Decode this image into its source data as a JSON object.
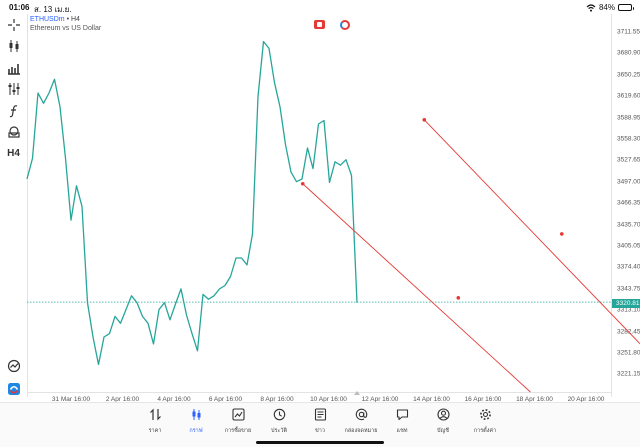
{
  "status_bar": {
    "time": "01:06",
    "date": "ส. 13 เม.ย.",
    "battery": "84%",
    "battery_level": 0.84
  },
  "chart_header": {
    "symbol": "ETHUSDm",
    "separator": "•",
    "timeframe": "H4",
    "description": "Ethereum vs US Dollar"
  },
  "left_toolbar": {
    "timeframe_button": "H4"
  },
  "price_axis": [
    "3711.55",
    "3680.90",
    "3650.25",
    "3619.60",
    "3588.95",
    "3558.30",
    "3527.65",
    "3497.00",
    "3466.35",
    "3435.70",
    "3405.05",
    "3374.40",
    "3343.75",
    "3313.10",
    "3282.45",
    "3251.80",
    "3221.15"
  ],
  "current_price": "3320.81",
  "time_axis": [
    "31 Mar 16:00",
    "2 Apr 16:00",
    "4 Apr 16:00",
    "6 Apr 16:00",
    "8 Apr 16:00",
    "10 Apr 16:00",
    "12 Apr 16:00",
    "14 Apr 16:00",
    "16 Apr 16:00",
    "18 Apr 16:00",
    "20 Apr 16:00"
  ],
  "colors": {
    "price_line": "#26a69a",
    "trend_lines": "#e53935",
    "accent": "#2962ff"
  },
  "tabs": [
    {
      "label": "ราคา",
      "icon": "quotes-icon"
    },
    {
      "label": "กราฟ",
      "icon": "candles-icon",
      "active": true
    },
    {
      "label": "การซื้อขาย",
      "icon": "trade-chart-icon"
    },
    {
      "label": "ประวัติ",
      "icon": "history-icon"
    },
    {
      "label": "ข่าว",
      "icon": "news-icon"
    },
    {
      "label": "กล่องจดหมาย",
      "icon": "mailbox-icon"
    },
    {
      "label": "แชท",
      "icon": "chat-icon"
    },
    {
      "label": "บัญชี",
      "icon": "account-icon"
    },
    {
      "label": "การตั้งค่า",
      "icon": "settings-icon"
    }
  ],
  "chart_data": {
    "type": "line",
    "symbol": "ETHUSDm",
    "timeframe": "H4",
    "y_range": [
      3190,
      3740
    ],
    "current_price": 3320.81,
    "series": [
      {
        "name": "ETHUSDm",
        "values": [
          3500,
          3530,
          3625,
          3610,
          3625,
          3645,
          3605,
          3530,
          3440,
          3490,
          3460,
          3320,
          3270,
          3230,
          3270,
          3275,
          3300,
          3290,
          3310,
          3330,
          3320,
          3300,
          3290,
          3260,
          3310,
          3320,
          3295,
          3318,
          3340,
          3302,
          3275,
          3250,
          3332,
          3325,
          3330,
          3340,
          3345,
          3358,
          3385,
          3385,
          3375,
          3420,
          3620,
          3700,
          3690,
          3640,
          3605,
          3550,
          3510,
          3496,
          3500,
          3545,
          3515,
          3580,
          3585,
          3495,
          3525,
          3520,
          3528,
          3505,
          3320
        ]
      }
    ],
    "trend_lines": [
      {
        "points": [
          [
            4.5,
            3493
          ],
          [
            7.52,
            3327
          ],
          [
            8.92,
            3190
          ]
        ]
      },
      {
        "points": [
          [
            6.86,
            3586
          ],
          [
            9.53,
            3420
          ],
          [
            11.18,
            3250
          ]
        ]
      }
    ]
  }
}
